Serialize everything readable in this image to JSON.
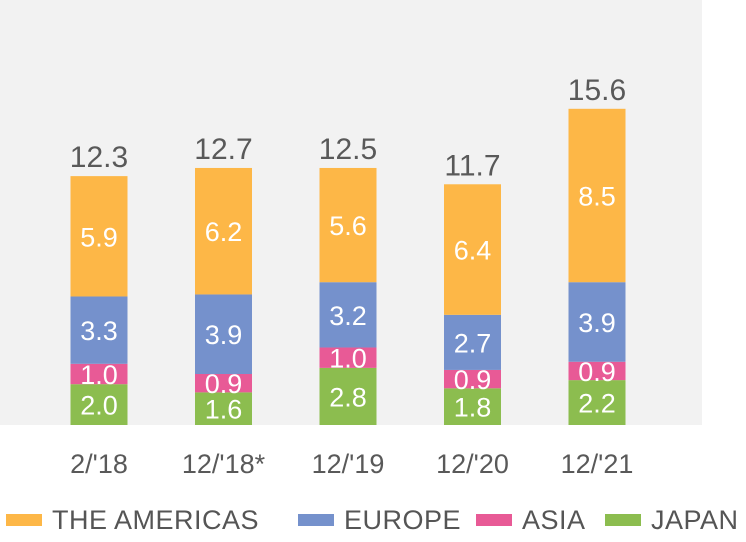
{
  "chart_data": {
    "type": "bar",
    "stacked": true,
    "categories": [
      "2/'18",
      "12/'18*",
      "12/'19",
      "12/'20",
      "12/'21"
    ],
    "series": [
      {
        "name": "JAPAN",
        "values": [
          2.0,
          1.6,
          2.8,
          1.8,
          2.2
        ],
        "color": "#8cbd4f"
      },
      {
        "name": "ASIA",
        "values": [
          1.0,
          0.9,
          1.0,
          0.9,
          0.9
        ],
        "color": "#e85a96"
      },
      {
        "name": "EUROPE",
        "values": [
          3.3,
          3.9,
          3.2,
          2.7,
          3.9
        ],
        "color": "#7591cc"
      },
      {
        "name": "THE AMERICAS",
        "values": [
          5.9,
          6.2,
          5.6,
          6.4,
          8.5
        ],
        "color": "#fdb747"
      }
    ],
    "value_labels": {
      "JAPAN": [
        "2.0",
        "1.6",
        "2.8",
        "1.8",
        "2.2"
      ],
      "ASIA": [
        "1.0",
        "0.9",
        "1.0",
        "0.9",
        "0.9"
      ],
      "EUROPE": [
        "3.3",
        "3.9",
        "3.2",
        "2.7",
        "3.9"
      ],
      "THE AMERICAS": [
        "5.9",
        "6.2",
        "5.6",
        "6.4",
        "8.5"
      ]
    },
    "totals": [
      "12.3",
      "12.7",
      "12.5",
      "11.7",
      "15.6"
    ],
    "legend_order": [
      "THE AMERICAS",
      "EUROPE",
      "ASIA",
      "JAPAN"
    ],
    "legend_position": "bottom",
    "plot_background": "#f2f2f2",
    "ylim": [
      0,
      17
    ],
    "grid": false,
    "title": "",
    "xlabel": "",
    "ylabel": ""
  }
}
